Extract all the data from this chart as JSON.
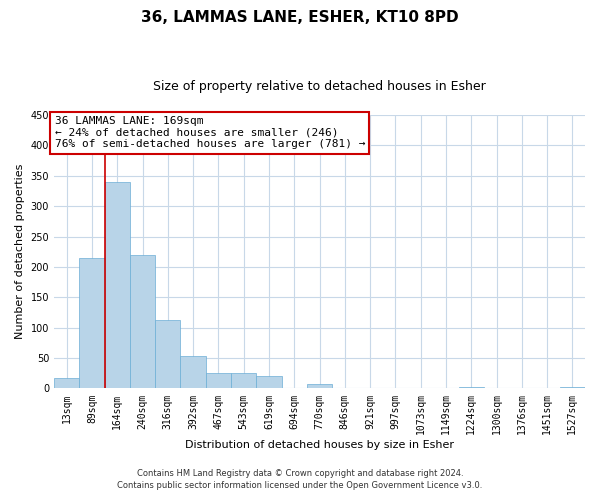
{
  "title": "36, LAMMAS LANE, ESHER, KT10 8PD",
  "subtitle": "Size of property relative to detached houses in Esher",
  "xlabel": "Distribution of detached houses by size in Esher",
  "ylabel": "Number of detached properties",
  "bar_labels": [
    "13sqm",
    "89sqm",
    "164sqm",
    "240sqm",
    "316sqm",
    "392sqm",
    "467sqm",
    "543sqm",
    "619sqm",
    "694sqm",
    "770sqm",
    "846sqm",
    "921sqm",
    "997sqm",
    "1073sqm",
    "1149sqm",
    "1224sqm",
    "1300sqm",
    "1376sqm",
    "1451sqm",
    "1527sqm"
  ],
  "bar_values": [
    18,
    215,
    340,
    220,
    113,
    53,
    26,
    25,
    20,
    0,
    7,
    0,
    0,
    0,
    0,
    0,
    2,
    0,
    0,
    0,
    2
  ],
  "bar_color": "#b8d4e8",
  "bar_edge_color": "#6baed6",
  "vline_bar_index": 2,
  "vline_color": "#cc0000",
  "annotation_title": "36 LAMMAS LANE: 169sqm",
  "annotation_line1": "← 24% of detached houses are smaller (246)",
  "annotation_line2": "76% of semi-detached houses are larger (781) →",
  "annotation_box_color": "#ffffff",
  "annotation_border_color": "#cc0000",
  "ylim": [
    0,
    450
  ],
  "yticks": [
    0,
    50,
    100,
    150,
    200,
    250,
    300,
    350,
    400,
    450
  ],
  "footer1": "Contains HM Land Registry data © Crown copyright and database right 2024.",
  "footer2": "Contains public sector information licensed under the Open Government Licence v3.0.",
  "title_fontsize": 11,
  "subtitle_fontsize": 9,
  "label_fontsize": 8,
  "tick_fontsize": 7,
  "annotation_fontsize": 8,
  "footer_fontsize": 6,
  "background_color": "#ffffff",
  "grid_color": "#c8d8e8"
}
